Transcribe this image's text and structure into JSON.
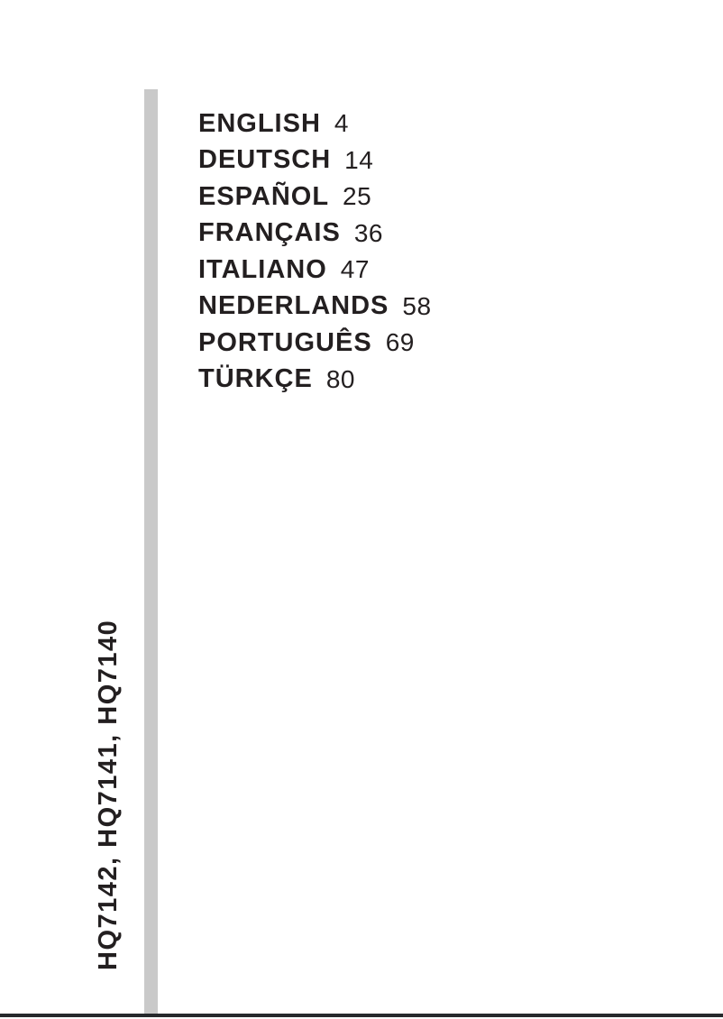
{
  "page": {
    "background_color": "#ffffff",
    "text_color": "#231f20",
    "side_bar_color": "#c9c9c9",
    "bottom_rule_color": "#26292c"
  },
  "toc": {
    "items": [
      {
        "label": "ENGLISH",
        "page": "4"
      },
      {
        "label": "DEUTSCH",
        "page": "14"
      },
      {
        "label": "ESPAÑOL",
        "page": "25"
      },
      {
        "label": "FRANÇAIS",
        "page": "36"
      },
      {
        "label": "ITALIANO",
        "page": "47"
      },
      {
        "label": "NEDERLANDS",
        "page": "58"
      },
      {
        "label": "PORTUGUÊS",
        "page": "69"
      },
      {
        "label": "TÜRKÇE",
        "page": "80"
      }
    ]
  },
  "model_label": "HQ7142, HQ7141, HQ7140"
}
